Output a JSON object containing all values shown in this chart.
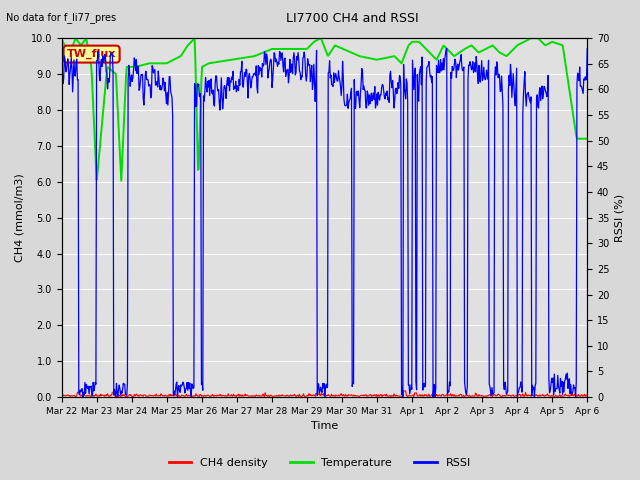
{
  "title": "LI7700 CH4 and RSSI",
  "subtitle": "No data for f_li77_pres",
  "xlabel": "Time",
  "ylabel_left": "CH4 (mmol/m3)",
  "ylabel_right": "RSSI (%)",
  "ylim_left": [
    0.0,
    10.0
  ],
  "ylim_right": [
    0,
    70
  ],
  "yticks_left": [
    0.0,
    1.0,
    2.0,
    3.0,
    4.0,
    5.0,
    6.0,
    7.0,
    8.0,
    9.0,
    10.0
  ],
  "yticks_right": [
    0,
    5,
    10,
    15,
    20,
    25,
    30,
    35,
    40,
    45,
    50,
    55,
    60,
    65,
    70
  ],
  "xtick_labels": [
    "Mar 22",
    "Mar 23",
    "Mar 24",
    "Mar 25",
    "Mar 26",
    "Mar 27",
    "Mar 28",
    "Mar 29",
    "Mar 30",
    "Mar 31",
    "Apr 1",
    "Apr 2",
    "Apr 3",
    "Apr 4",
    "Apr 5",
    "Apr 6"
  ],
  "annotation_box": "TW_flux",
  "annotation_box_color": "#cc0000",
  "annotation_box_bg": "#ffff99",
  "ch4_color": "#ff0000",
  "temp_color": "#00dd00",
  "rssi_color": "#0000ff",
  "legend_labels": [
    "CH4 density",
    "Temperature",
    "RSSI"
  ],
  "grid_color": "#ffffff",
  "bg_color": "#d8d8d8",
  "num_days": 16,
  "rssi_base": 62,
  "rssi_noise": 3.0
}
